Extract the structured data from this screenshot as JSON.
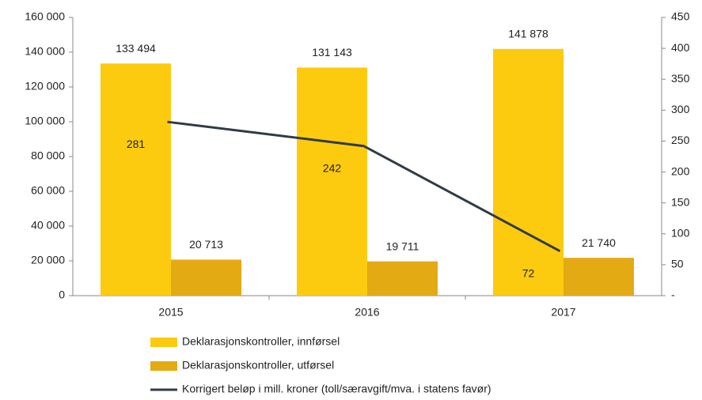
{
  "chart_data": {
    "type": "bar",
    "categories": [
      "2015",
      "2016",
      "2017"
    ],
    "series": [
      {
        "name": "Deklarasjonskontroller, innførsel",
        "color": "#fccb10",
        "values": [
          133494,
          131143,
          141878
        ],
        "value_labels": [
          "133 494",
          "131 143",
          "141 878"
        ]
      },
      {
        "name": "Deklarasjonskontroller, utførsel",
        "color": "#e3aa14",
        "values": [
          20713,
          19711,
          21740
        ],
        "value_labels": [
          "20 713",
          "19 711",
          "21 740"
        ]
      },
      {
        "name": "Korrigert beløp i mill. kroner (toll/særavgift/mva. i statens favør)",
        "color": "#2f3b47",
        "type": "line",
        "axis": "y2",
        "values": [
          281,
          242,
          72
        ]
      }
    ],
    "ylim": [
      0,
      160000
    ],
    "yticks": [
      0,
      {
        "value": 20000,
        "label": "20 000"
      },
      {
        "value": 40000,
        "label": "40 000"
      },
      {
        "value": 60000,
        "label": "60 000"
      },
      {
        "value": 80000,
        "label": "80 000"
      },
      {
        "value": 100000,
        "label": "100 000"
      },
      {
        "value": 120000,
        "label": "120 000"
      },
      {
        "value": 140000,
        "label": "140 000"
      },
      {
        "value": 160000,
        "label": "160 000"
      }
    ],
    "y2lim": [
      0,
      450
    ],
    "y2ticks": [
      {
        "value": 0,
        "label": "-"
      },
      50,
      100,
      150,
      200,
      250,
      300,
      350,
      400,
      450
    ],
    "legend": "bottom"
  }
}
